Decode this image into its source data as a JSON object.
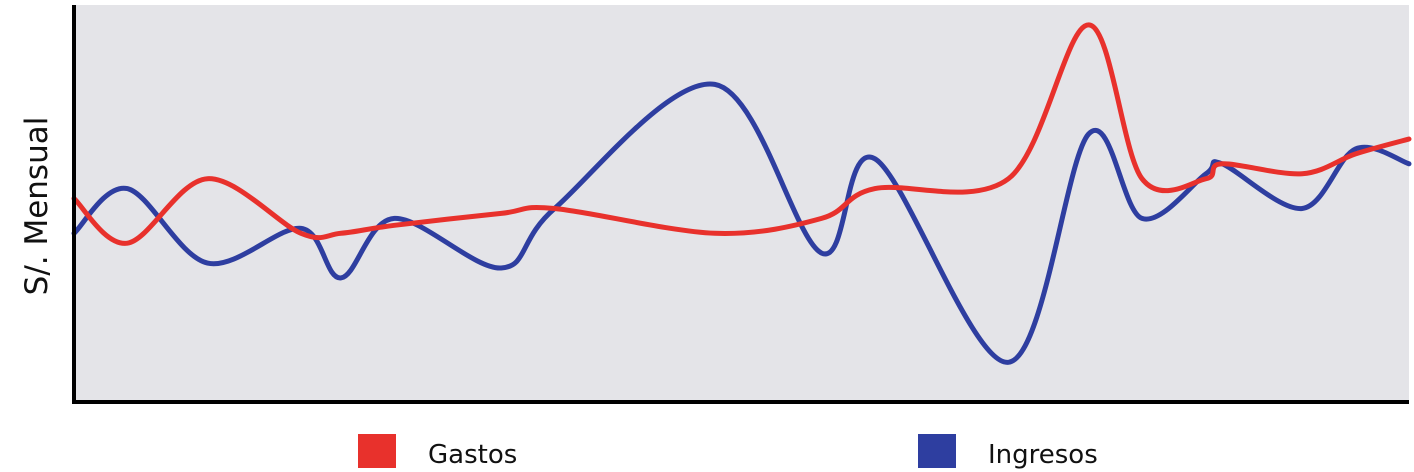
{
  "chart_data": {
    "type": "line",
    "title": "",
    "xlabel": "",
    "ylabel": "S/. Mensual",
    "x_ticks": "none",
    "y_ticks": "none",
    "grid": false,
    "background": "#e4e4e8",
    "legend_position": "bottom",
    "x": [
      0.0,
      0.04,
      0.1,
      0.17,
      0.2,
      0.24,
      0.32,
      0.36,
      0.48,
      0.56,
      0.6,
      0.7,
      0.76,
      0.8,
      0.848,
      0.86,
      0.92,
      0.96,
      1.0
    ],
    "series": [
      {
        "name": "Gastos",
        "color": "#e8312c",
        "values": [
          205,
          160,
          225,
          170,
          170,
          178,
          190,
          195,
          170,
          185,
          215,
          225,
          380,
          225,
          225,
          240,
          230,
          250,
          265
        ]
      },
      {
        "name": "Ingresos",
        "color": "#2e3ea0",
        "values": [
          170,
          215,
          140,
          175,
          125,
          185,
          135,
          195,
          320,
          150,
          245,
          40,
          270,
          185,
          230,
          240,
          195,
          255,
          240
        ]
      }
    ]
  },
  "legend": [
    {
      "label": "Gastos",
      "color": "#e8312c"
    },
    {
      "label": "Ingresos",
      "color": "#2e3ea0"
    }
  ]
}
